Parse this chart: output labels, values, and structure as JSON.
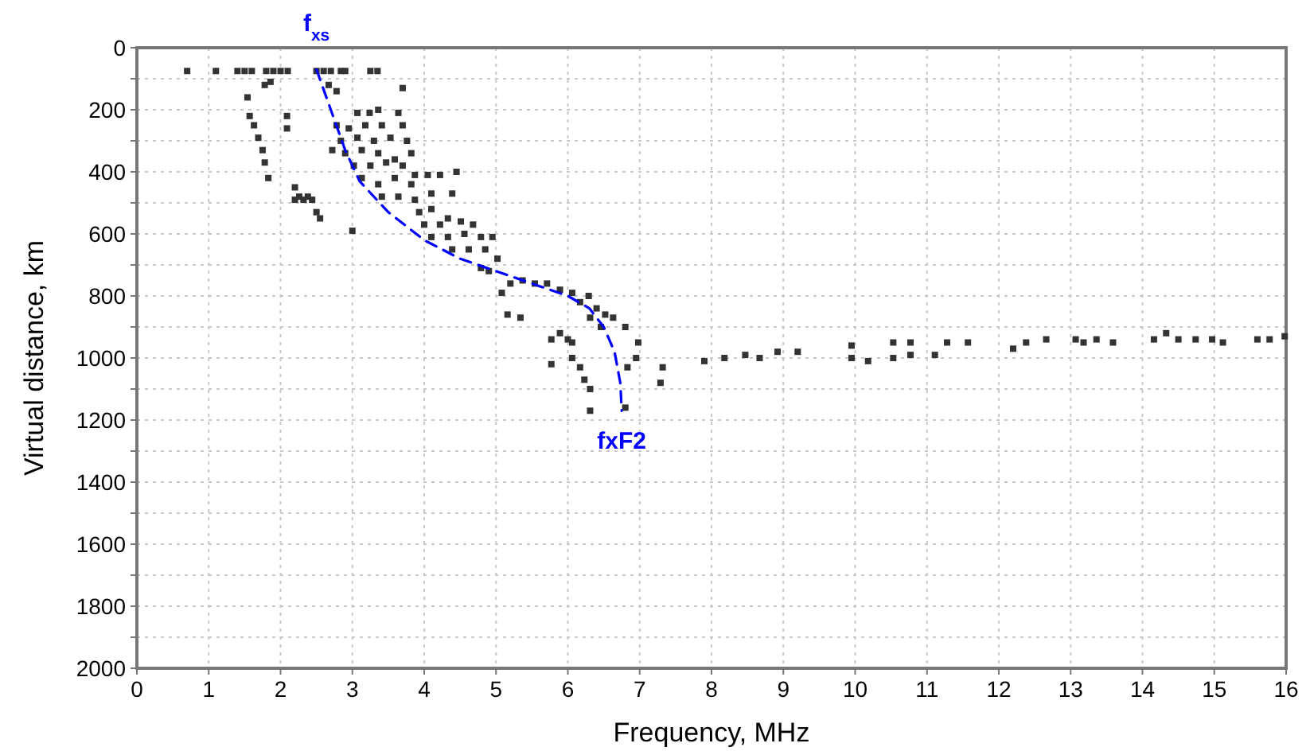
{
  "chart_data": {
    "type": "scatter",
    "xlabel": "Frequency, MHz",
    "ylabel": "Virtual distance, km",
    "xlim": [
      0,
      16
    ],
    "ylim": [
      2000,
      0
    ],
    "xticks": [
      0,
      1,
      2,
      3,
      4,
      5,
      6,
      7,
      8,
      9,
      10,
      11,
      12,
      13,
      14,
      15,
      16
    ],
    "yticks": [
      0,
      {
        "value": 100,
        "label": null
      },
      200,
      {
        "value": 300,
        "label": null
      },
      400,
      {
        "value": 500,
        "label": null
      },
      600,
      {
        "value": 700,
        "label": null
      },
      800,
      {
        "value": 900,
        "label": null
      },
      1000,
      {
        "value": 1100,
        "label": null
      },
      1200,
      {
        "value": 1300,
        "label": null
      },
      1400,
      {
        "value": 1500,
        "label": null
      },
      1600,
      {
        "value": 1700,
        "label": null
      },
      1800,
      {
        "value": 1900,
        "label": null
      },
      2000
    ],
    "grid": true,
    "annotations": [
      {
        "text": "f$_{xs}$",
        "x": 2.5,
        "y": 70
      },
      {
        "text": "fxF2",
        "x": 6.75,
        "y": 1170
      }
    ],
    "series": [
      {
        "color": "#333333",
        "marker": "square",
        "x": [
          0.7,
          1.1,
          1.4,
          1.5,
          1.6,
          1.8,
          1.9,
          2.0,
          2.1,
          2.5,
          2.6,
          2.7,
          2.9,
          3.25,
          3.35,
          1.54,
          1.57,
          1.63,
          1.69,
          1.75,
          1.78,
          1.83,
          1.78,
          1.86,
          2.09,
          2.09,
          2.2,
          2.26,
          2.32,
          2.38,
          2.44,
          2.2,
          2.5,
          2.55,
          3.0,
          2.67,
          2.78,
          2.84,
          3.7,
          3.07,
          3.24,
          3.36,
          3.64,
          2.78,
          2.95,
          3.18,
          3.41,
          3.7,
          2.84,
          3.07,
          3.3,
          3.53,
          3.76,
          2.9,
          3.13,
          3.36,
          3.59,
          3.82,
          2.72,
          3.02,
          3.25,
          3.47,
          3.7,
          3.87,
          3.13,
          3.36,
          3.59,
          3.82,
          4.05,
          4.22,
          4.45,
          3.41,
          3.64,
          3.87,
          4.1,
          4.39,
          3.93,
          4.1,
          4.33,
          4.0,
          4.22,
          4.51,
          4.68,
          4.1,
          4.33,
          4.56,
          4.79,
          4.95,
          4.39,
          4.62,
          4.85,
          5.02,
          4.79,
          4.9,
          5.08,
          5.2,
          5.37,
          5.54,
          5.71,
          5.89,
          6.06,
          6.17,
          6.29,
          6.4,
          6.52,
          6.63,
          5.16,
          5.34,
          6.31,
          6.46,
          6.8,
          6.98,
          6.95,
          6.83,
          7.32,
          7.29,
          5.77,
          5.89,
          6.0,
          6.06,
          5.77,
          6.06,
          6.17,
          6.23,
          6.31,
          6.31,
          6.8,
          7.9,
          8.18,
          8.47,
          8.67,
          8.92,
          9.2,
          9.95,
          9.95,
          10.18,
          10.53,
          10.53,
          10.77,
          10.77,
          11.11,
          11.28,
          11.57,
          12.2,
          12.38,
          12.66,
          13.07,
          13.18,
          13.36,
          13.59,
          14.16,
          14.33,
          14.5,
          14.74,
          14.97,
          15.12,
          15.6,
          15.77,
          15.98
        ],
        "values": [
          75,
          75,
          75,
          75,
          75,
          75,
          75,
          75,
          75,
          75,
          75,
          75,
          75,
          75,
          75,
          160,
          220,
          250,
          290,
          330,
          370,
          420,
          120,
          110,
          220,
          260,
          450,
          480,
          490,
          480,
          490,
          490,
          530,
          550,
          590,
          120,
          140,
          75,
          130,
          210,
          210,
          200,
          210,
          250,
          260,
          250,
          250,
          250,
          300,
          290,
          300,
          290,
          300,
          340,
          330,
          340,
          360,
          340,
          330,
          380,
          380,
          370,
          380,
          410,
          420,
          440,
          420,
          440,
          410,
          410,
          400,
          480,
          480,
          490,
          470,
          470,
          530,
          520,
          550,
          570,
          570,
          560,
          570,
          610,
          610,
          600,
          610,
          610,
          650,
          650,
          650,
          680,
          710,
          720,
          790,
          760,
          750,
          760,
          760,
          780,
          790,
          820,
          800,
          840,
          860,
          870,
          860,
          870,
          870,
          900,
          900,
          950,
          1000,
          1030,
          1030,
          1080,
          940,
          920,
          940,
          950,
          1020,
          1000,
          1030,
          1070,
          1100,
          1170,
          1160,
          1010,
          1000,
          990,
          1000,
          980,
          980,
          960,
          1000,
          1010,
          950,
          1000,
          950,
          990,
          990,
          950,
          950,
          970,
          950,
          940,
          940,
          950,
          940,
          950,
          940,
          920,
          940,
          940,
          940,
          950,
          940,
          940,
          930
        ]
      },
      {
        "type": "line",
        "color": "#0000ff",
        "line_style": "dashed",
        "marker": "none",
        "x": [
          2.5,
          2.7,
          2.9,
          3.1,
          3.5,
          4.0,
          4.5,
          5.0,
          5.5,
          6.0,
          6.3,
          6.5,
          6.65,
          6.73,
          6.75
        ],
        "values": [
          70,
          200,
          330,
          430,
          530,
          620,
          680,
          720,
          760,
          800,
          840,
          900,
          980,
          1080,
          1170
        ]
      }
    ]
  }
}
